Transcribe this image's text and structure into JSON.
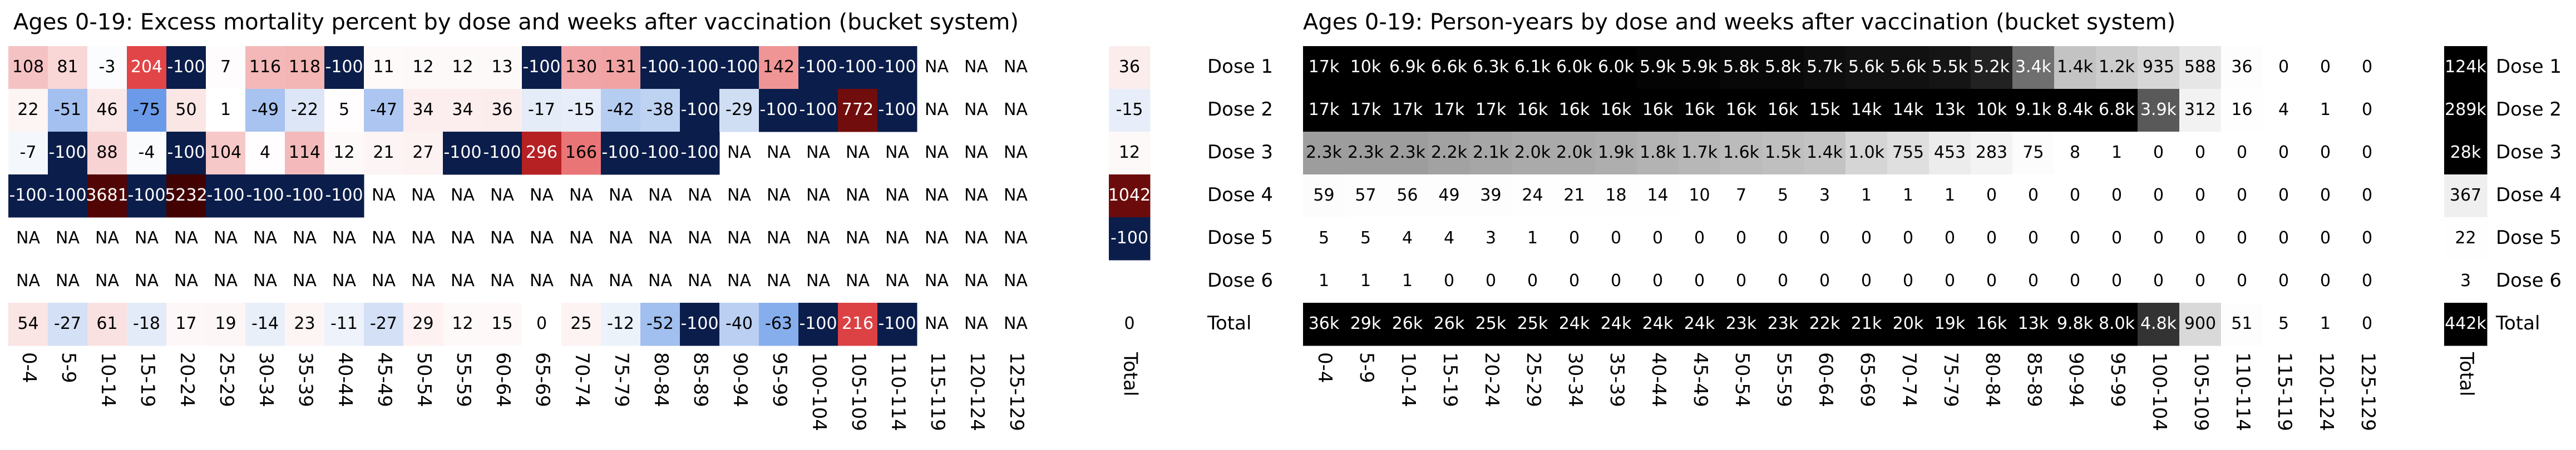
{
  "chart_data": [
    {
      "type": "heatmap",
      "title": "Ages 0-19: Excess mortality percent by dose and weeks after vaccination (bucket system)",
      "colormap": "diverging",
      "categories": [
        "0-4",
        "5-9",
        "10-14",
        "15-19",
        "20-24",
        "25-29",
        "30-34",
        "35-39",
        "40-44",
        "45-49",
        "50-54",
        "55-59",
        "60-64",
        "65-69",
        "70-74",
        "75-79",
        "80-84",
        "85-89",
        "90-94",
        "95-99",
        "100-104",
        "105-109",
        "110-114",
        "115-119",
        "120-124",
        "125-129",
        "Total"
      ],
      "series": [
        {
          "name": "Dose 1",
          "values": [
            108,
            81,
            -3,
            204,
            -100,
            7,
            116,
            118,
            -100,
            11,
            12,
            12,
            13,
            -100,
            130,
            131,
            -100,
            -100,
            -100,
            142,
            -100,
            -100,
            -100,
            "NA",
            "NA",
            "NA",
            36
          ]
        },
        {
          "name": "Dose 2",
          "values": [
            22,
            -51,
            46,
            -75,
            50,
            1,
            -49,
            -22,
            5,
            -47,
            34,
            34,
            36,
            -17,
            -15,
            -42,
            -38,
            -100,
            -29,
            -100,
            -100,
            772,
            -100,
            "NA",
            "NA",
            "NA",
            -15
          ]
        },
        {
          "name": "Dose 3",
          "values": [
            -7,
            -100,
            88,
            -4,
            -100,
            104,
            4,
            114,
            12,
            21,
            27,
            -100,
            -100,
            296,
            166,
            -100,
            -100,
            -100,
            "NA",
            "NA",
            "NA",
            "NA",
            "NA",
            "NA",
            "NA",
            "NA",
            12
          ]
        },
        {
          "name": "Dose 4",
          "values": [
            -100,
            -100,
            3681,
            -100,
            5232,
            -100,
            -100,
            -100,
            -100,
            "NA",
            "NA",
            "NA",
            "NA",
            "NA",
            "NA",
            "NA",
            "NA",
            "NA",
            "NA",
            "NA",
            "NA",
            "NA",
            "NA",
            "NA",
            "NA",
            "NA",
            1042
          ]
        },
        {
          "name": "Dose 5",
          "values": [
            "NA",
            "NA",
            "NA",
            "NA",
            "NA",
            "NA",
            "NA",
            "NA",
            "NA",
            "NA",
            "NA",
            "NA",
            "NA",
            "NA",
            "NA",
            "NA",
            "NA",
            "NA",
            "NA",
            "NA",
            "NA",
            "NA",
            "NA",
            "NA",
            "NA",
            "NA",
            -100
          ]
        },
        {
          "name": "Dose 6",
          "values": [
            "NA",
            "NA",
            "NA",
            "NA",
            "NA",
            "NA",
            "NA",
            "NA",
            "NA",
            "NA",
            "NA",
            "NA",
            "NA",
            "NA",
            "NA",
            "NA",
            "NA",
            "NA",
            "NA",
            "NA",
            "NA",
            "NA",
            "NA",
            "NA",
            "NA",
            "NA",
            null
          ]
        },
        {
          "name": "Total",
          "values": [
            54,
            -27,
            61,
            -18,
            17,
            19,
            -14,
            23,
            -11,
            -27,
            29,
            12,
            15,
            0,
            25,
            -12,
            -52,
            -100,
            -40,
            -63,
            -100,
            216,
            -100,
            "NA",
            "NA",
            "NA",
            0
          ]
        }
      ]
    },
    {
      "type": "heatmap",
      "title": "Ages 0-19: Person-years by dose and weeks after vaccination (bucket system)",
      "colormap": "greys",
      "categories": [
        "0-4",
        "5-9",
        "10-14",
        "15-19",
        "20-24",
        "25-29",
        "30-34",
        "35-39",
        "40-44",
        "45-49",
        "50-54",
        "55-59",
        "60-64",
        "65-69",
        "70-74",
        "75-79",
        "80-84",
        "85-89",
        "90-94",
        "95-99",
        "100-104",
        "105-109",
        "110-114",
        "115-119",
        "120-124",
        "125-129",
        "Total"
      ],
      "series": [
        {
          "name": "Dose 1",
          "values": [
            17000,
            10000,
            6900,
            6600,
            6300,
            6100,
            6000,
            6000,
            5900,
            5900,
            5800,
            5800,
            5700,
            5600,
            5600,
            5500,
            5200,
            3400,
            1400,
            1200,
            935,
            588,
            36,
            0,
            0,
            0,
            124000
          ],
          "value_labels": [
            "17k",
            "10k",
            "6.9k",
            "6.6k",
            "6.3k",
            "6.1k",
            "6.0k",
            "6.0k",
            "5.9k",
            "5.9k",
            "5.8k",
            "5.8k",
            "5.7k",
            "5.6k",
            "5.6k",
            "5.5k",
            "5.2k",
            "3.4k",
            "1.4k",
            "1.2k",
            "935",
            "588",
            "36",
            "0",
            "0",
            "0",
            "124k"
          ]
        },
        {
          "name": "Dose 2",
          "values": [
            17000,
            17000,
            17000,
            17000,
            17000,
            16000,
            16000,
            16000,
            16000,
            16000,
            16000,
            16000,
            15000,
            14000,
            14000,
            13000,
            10000,
            9100,
            8400,
            6800,
            3900,
            312,
            16,
            4,
            1,
            0,
            289000
          ],
          "value_labels": [
            "17k",
            "17k",
            "17k",
            "17k",
            "17k",
            "16k",
            "16k",
            "16k",
            "16k",
            "16k",
            "16k",
            "16k",
            "15k",
            "14k",
            "14k",
            "13k",
            "10k",
            "9.1k",
            "8.4k",
            "6.8k",
            "3.9k",
            "312",
            "16",
            "4",
            "1",
            "0",
            "289k"
          ]
        },
        {
          "name": "Dose 3",
          "values": [
            2300,
            2300,
            2300,
            2200,
            2100,
            2000,
            2000,
            1900,
            1800,
            1700,
            1600,
            1500,
            1400,
            1000,
            755,
            453,
            283,
            75,
            8,
            1,
            0,
            0,
            0,
            0,
            0,
            0,
            28000
          ],
          "value_labels": [
            "2.3k",
            "2.3k",
            "2.3k",
            "2.2k",
            "2.1k",
            "2.0k",
            "2.0k",
            "1.9k",
            "1.8k",
            "1.7k",
            "1.6k",
            "1.5k",
            "1.4k",
            "1.0k",
            "755",
            "453",
            "283",
            "75",
            "8",
            "1",
            "0",
            "0",
            "0",
            "0",
            "0",
            "0",
            "28k"
          ]
        },
        {
          "name": "Dose 4",
          "values": [
            59,
            57,
            56,
            49,
            39,
            24,
            21,
            18,
            14,
            10,
            7,
            5,
            3,
            1,
            1,
            1,
            0,
            0,
            0,
            0,
            0,
            0,
            0,
            0,
            0,
            0,
            367
          ],
          "value_labels": [
            "59",
            "57",
            "56",
            "49",
            "39",
            "24",
            "21",
            "18",
            "14",
            "10",
            "7",
            "5",
            "3",
            "1",
            "1",
            "1",
            "0",
            "0",
            "0",
            "0",
            "0",
            "0",
            "0",
            "0",
            "0",
            "0",
            "367"
          ]
        },
        {
          "name": "Dose 5",
          "values": [
            5,
            5,
            4,
            4,
            3,
            1,
            0,
            0,
            0,
            0,
            0,
            0,
            0,
            0,
            0,
            0,
            0,
            0,
            0,
            0,
            0,
            0,
            0,
            0,
            0,
            0,
            22
          ],
          "value_labels": [
            "5",
            "5",
            "4",
            "4",
            "3",
            "1",
            "0",
            "0",
            "0",
            "0",
            "0",
            "0",
            "0",
            "0",
            "0",
            "0",
            "0",
            "0",
            "0",
            "0",
            "0",
            "0",
            "0",
            "0",
            "0",
            "0",
            "22"
          ]
        },
        {
          "name": "Dose 6",
          "values": [
            1,
            1,
            1,
            0,
            0,
            0,
            0,
            0,
            0,
            0,
            0,
            0,
            0,
            0,
            0,
            0,
            0,
            0,
            0,
            0,
            0,
            0,
            0,
            0,
            0,
            0,
            3
          ],
          "value_labels": [
            "1",
            "1",
            "1",
            "0",
            "0",
            "0",
            "0",
            "0",
            "0",
            "0",
            "0",
            "0",
            "0",
            "0",
            "0",
            "0",
            "0",
            "0",
            "0",
            "0",
            "0",
            "0",
            "0",
            "0",
            "0",
            "0",
            "3"
          ]
        },
        {
          "name": "Total",
          "values": [
            36000,
            29000,
            26000,
            26000,
            25000,
            25000,
            24000,
            24000,
            24000,
            24000,
            23000,
            23000,
            22000,
            21000,
            20000,
            19000,
            16000,
            13000,
            9800,
            8000,
            4800,
            900,
            51,
            5,
            1,
            0,
            442000
          ],
          "value_labels": [
            "36k",
            "29k",
            "26k",
            "26k",
            "25k",
            "25k",
            "24k",
            "24k",
            "24k",
            "24k",
            "23k",
            "23k",
            "22k",
            "21k",
            "20k",
            "19k",
            "16k",
            "13k",
            "9.8k",
            "8.0k",
            "4.8k",
            "900",
            "51",
            "5",
            "1",
            "0",
            "442k"
          ]
        }
      ]
    }
  ]
}
